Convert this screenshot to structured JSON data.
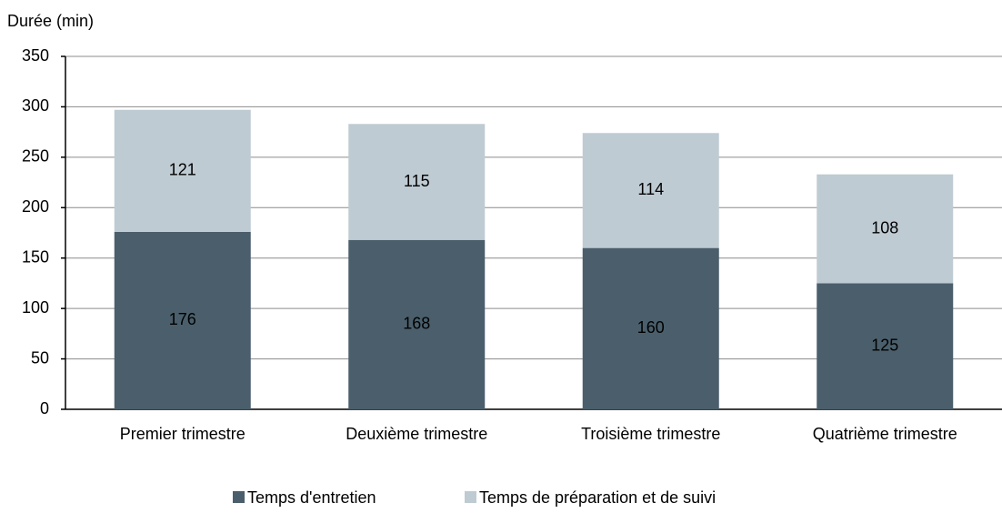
{
  "chart_data": {
    "type": "stacked_bar",
    "y_label": "Durée (min)",
    "categories": [
      "Premier trimestre",
      "Deuxième trimestre",
      "Troisième trimestre",
      "Quatrième trimestre"
    ],
    "series": [
      {
        "name": "Temps d'entretien",
        "color": "#4a5f6b",
        "values": [
          176,
          168,
          160,
          125
        ]
      },
      {
        "name": "Temps de préparation et de suivi",
        "color": "#bfcbd3",
        "values": [
          121,
          115,
          114,
          108
        ]
      }
    ],
    "ylim": [
      0,
      350
    ],
    "yticks": [
      0,
      50,
      100,
      150,
      200,
      250,
      300,
      350
    ],
    "grid": true,
    "legend": "bottom"
  }
}
